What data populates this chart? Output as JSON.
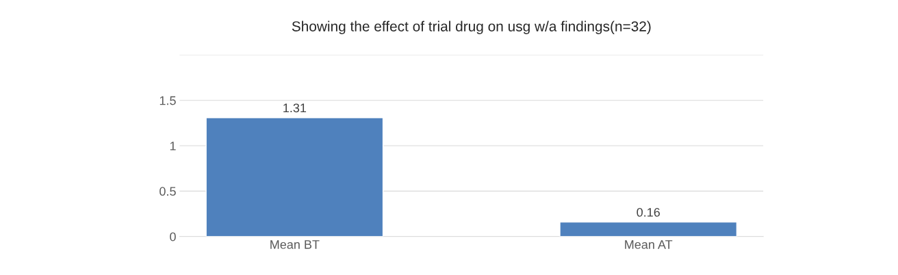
{
  "chart_data": {
    "type": "bar",
    "title": "Showing the effect of trial drug on usg w/a findings(n=32)",
    "categories": [
      "Mean BT",
      "Mean AT"
    ],
    "values": [
      1.31,
      0.16
    ],
    "color": "#4f81bd",
    "ylim": [
      0,
      2
    ],
    "yticks": [
      0,
      0.5,
      1,
      1.5,
      {
        "value": 2,
        "label": null
      }
    ],
    "grid": "y",
    "data_labels": true
  }
}
